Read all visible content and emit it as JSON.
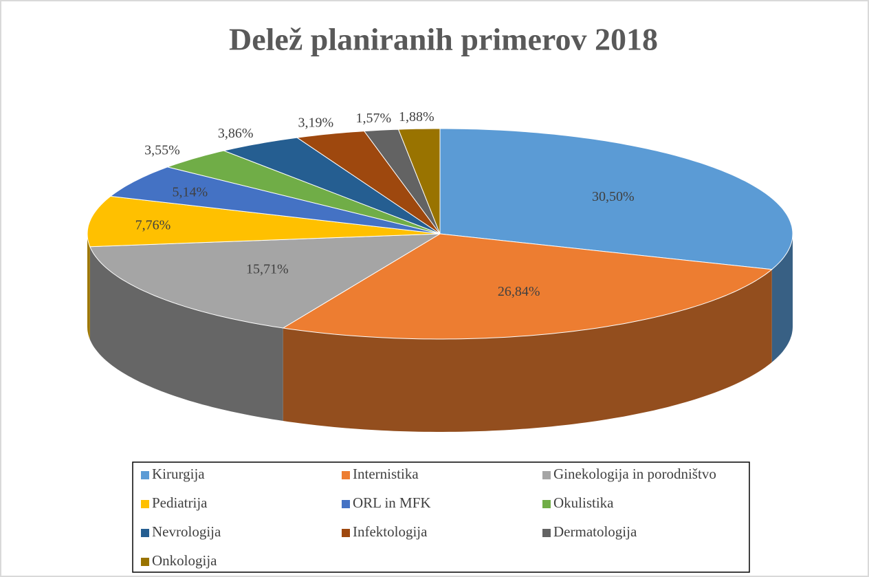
{
  "chart_data": {
    "type": "pie3d",
    "title": "Delež planiranih primerov 2018",
    "categories": [
      "Kirurgija",
      "Internistika",
      "Ginekologija in porodništvo",
      "Pediatrija",
      "ORL in MFK",
      "Okulistika",
      "Nevrologija",
      "Infektologija",
      "Dermatologija",
      "Onkologija"
    ],
    "values": [
      30.5,
      26.84,
      15.71,
      7.76,
      5.14,
      3.55,
      3.86,
      3.19,
      1.57,
      1.88
    ],
    "value_labels": [
      "30,50%",
      "26,84%",
      "15,71%",
      "7,76%",
      "5,14%",
      "3,55%",
      "3,86%",
      "3,19%",
      "1,57%",
      "1,88%"
    ],
    "colors": [
      "#5b9bd5",
      "#ed7d31",
      "#a5a5a5",
      "#ffc000",
      "#4472c4",
      "#70ad47",
      "#255e91",
      "#9e480e",
      "#636363",
      "#997300"
    ],
    "legend": "bottom"
  }
}
